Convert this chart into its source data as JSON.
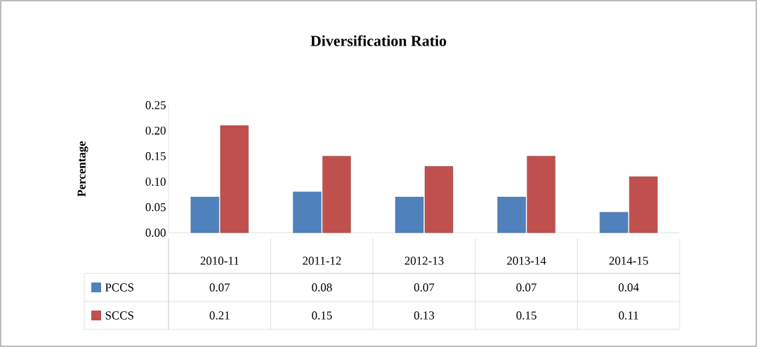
{
  "chart_data": {
    "type": "bar",
    "title": "Diversification Ratio",
    "ylabel": "Percentage",
    "categories": [
      "2010-11",
      "2011-12",
      "2012-13",
      "2013-14",
      "2014-15"
    ],
    "series": [
      {
        "name": "PCCS",
        "color": "#4f81bd",
        "values": [
          0.07,
          0.08,
          0.07,
          0.07,
          0.04
        ]
      },
      {
        "name": "SCCS",
        "color": "#c0504d",
        "values": [
          0.21,
          0.15,
          0.13,
          0.15,
          0.11
        ]
      }
    ],
    "ylim": [
      0,
      0.25
    ],
    "yticks": [
      {
        "value": 0,
        "label": "0.00"
      },
      {
        "value": 0.05,
        "label": "0.05"
      },
      {
        "value": 0.1,
        "label": "0.10"
      },
      {
        "value": 0.15,
        "label": "0.15"
      },
      {
        "value": 0.2,
        "label": "0.20"
      },
      {
        "value": 0.25,
        "label": "0.25"
      }
    ],
    "grid": false,
    "legend": "bottom",
    "data_labels": true
  }
}
